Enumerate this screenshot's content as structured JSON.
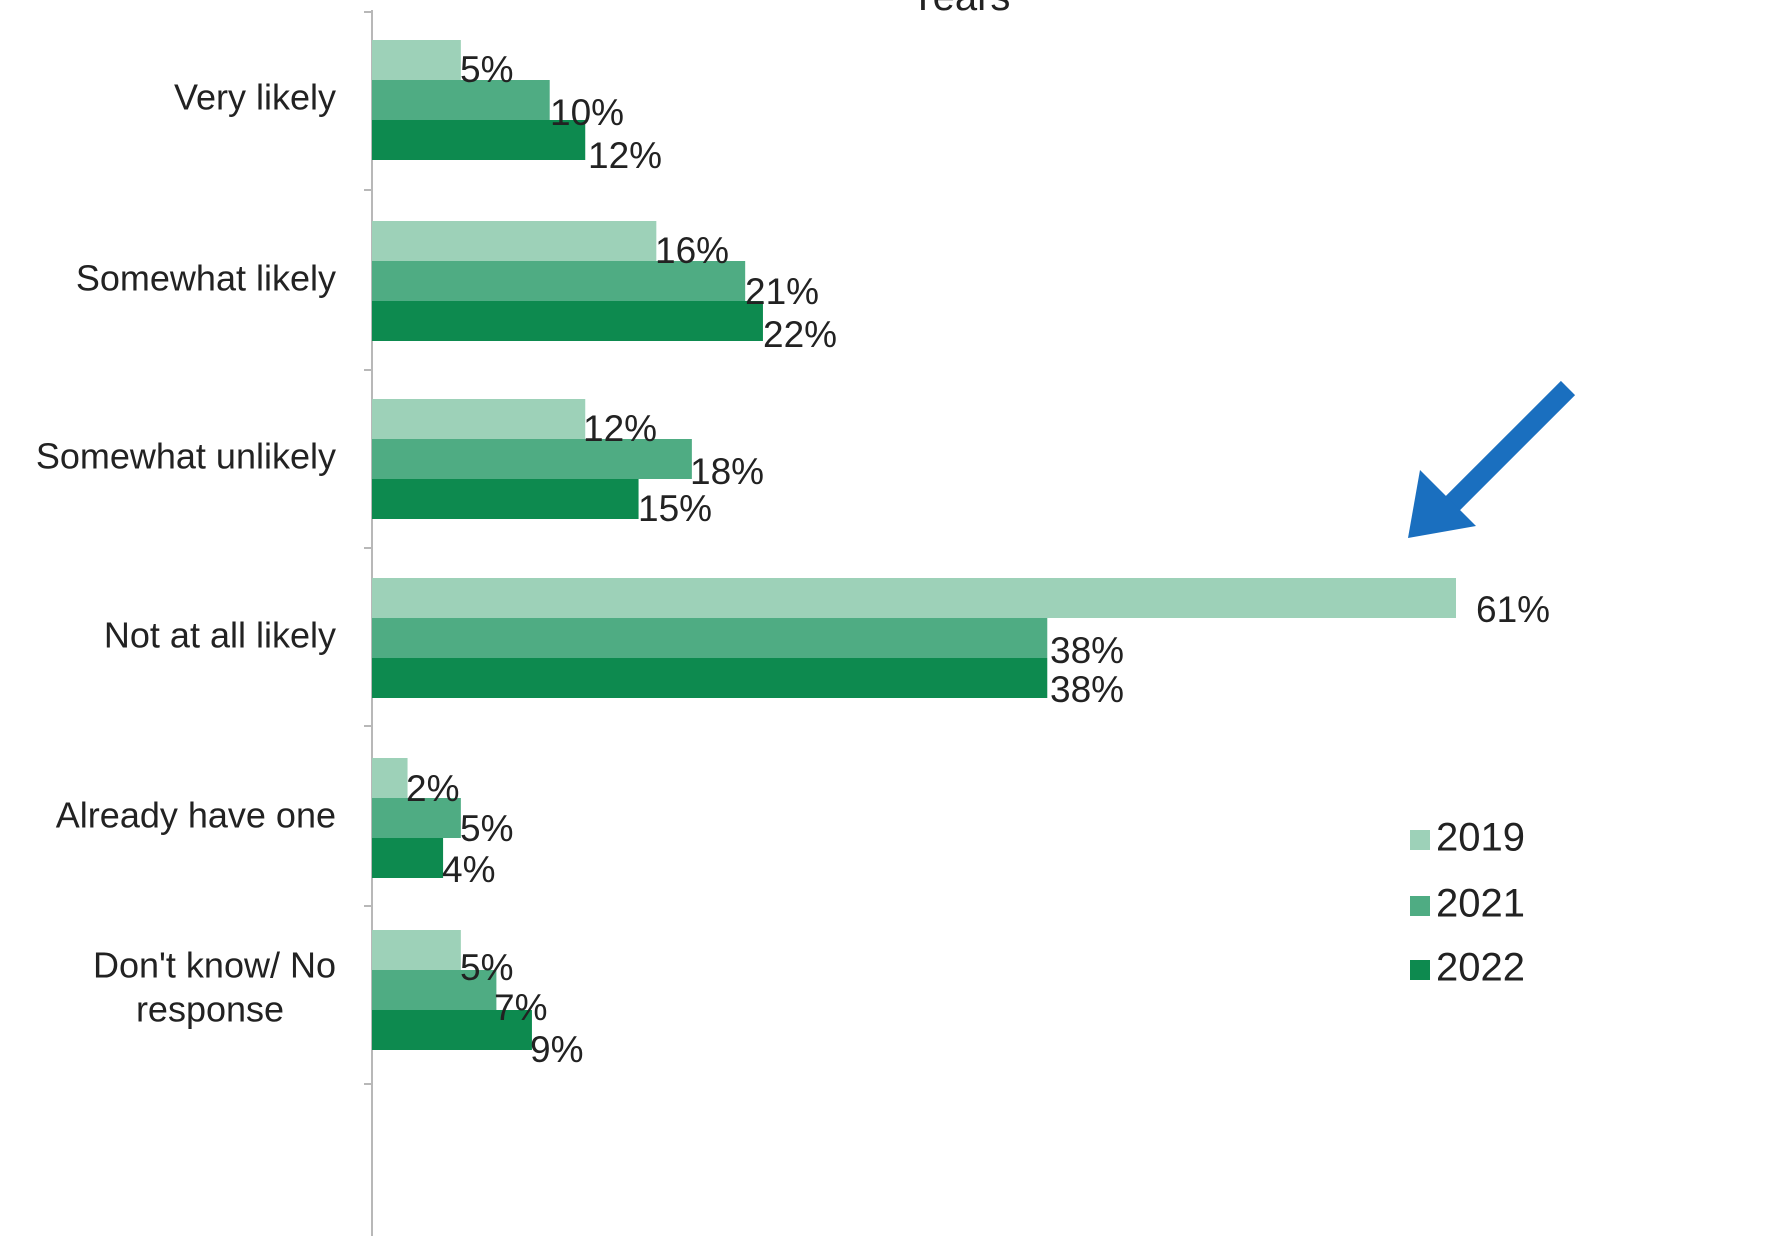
{
  "chart_data": {
    "type": "bar",
    "orientation": "horizontal",
    "title": "Years",
    "categories": [
      [
        "Very likely"
      ],
      [
        "Somewhat likely"
      ],
      [
        "Somewhat unlikely"
      ],
      [
        "Not at all likely"
      ],
      [
        "Already have one"
      ],
      [
        "Don't know/ No",
        "response"
      ]
    ],
    "series": [
      {
        "name": "2019",
        "color": "#9dd1b8",
        "values": [
          5,
          16,
          12,
          61,
          2,
          5
        ]
      },
      {
        "name": "2021",
        "color": "#4fac83",
        "values": [
          10,
          21,
          18,
          38,
          5,
          7
        ]
      },
      {
        "name": "2022",
        "color": "#0d8a4f",
        "values": [
          12,
          22,
          15,
          38,
          4,
          9
        ]
      }
    ],
    "value_suffix": "%",
    "xlim": [
      0,
      61
    ],
    "grid": false,
    "legend_position": "bottom-right",
    "annotation": {
      "type": "arrow",
      "color": "#1a6fbf",
      "points_to": "Not at all likely 2019"
    }
  }
}
